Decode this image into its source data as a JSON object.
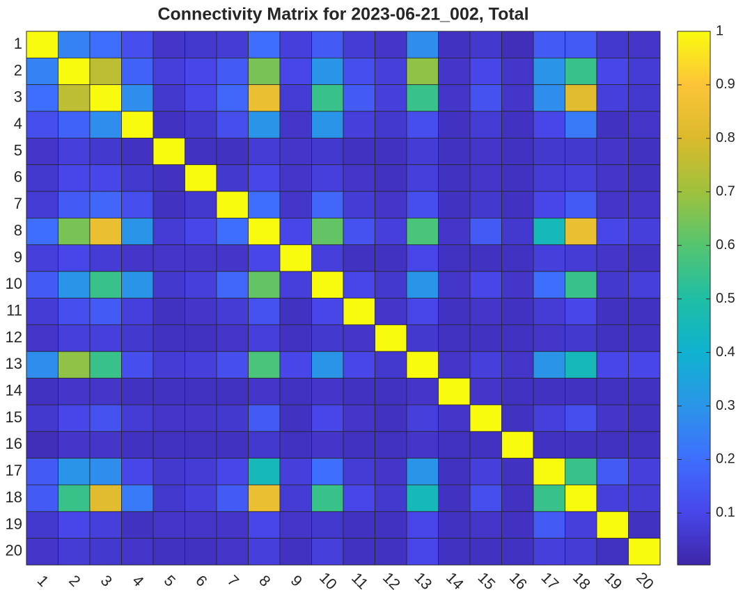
{
  "chart_data": {
    "type": "heatmap",
    "title": "Connectivity Matrix for 2023-06-21_002, Total",
    "x_categories": [
      "1",
      "2",
      "3",
      "4",
      "5",
      "6",
      "7",
      "8",
      "9",
      "10",
      "11",
      "12",
      "13",
      "14",
      "15",
      "16",
      "17",
      "18",
      "19",
      "20"
    ],
    "y_categories": [
      "1",
      "2",
      "3",
      "4",
      "5",
      "6",
      "7",
      "8",
      "9",
      "10",
      "11",
      "12",
      "13",
      "14",
      "15",
      "16",
      "17",
      "18",
      "19",
      "20"
    ],
    "values": [
      [
        1,
        0.25,
        0.2,
        0.12,
        0.05,
        0.06,
        0.07,
        0.2,
        0.08,
        0.15,
        0.07,
        0.05,
        0.28,
        0.04,
        0.06,
        0.03,
        0.15,
        0.15,
        0.06,
        0.05
      ],
      [
        0.25,
        1,
        0.75,
        0.17,
        0.08,
        0.1,
        0.15,
        0.65,
        0.1,
        0.3,
        0.12,
        0.08,
        0.68,
        0.05,
        0.1,
        0.05,
        0.3,
        0.55,
        0.1,
        0.07
      ],
      [
        0.2,
        0.75,
        1,
        0.28,
        0.06,
        0.1,
        0.18,
        0.85,
        0.07,
        0.55,
        0.15,
        0.08,
        0.55,
        0.05,
        0.13,
        0.05,
        0.28,
        0.82,
        0.08,
        0.06
      ],
      [
        0.12,
        0.17,
        0.28,
        1,
        0.04,
        0.06,
        0.12,
        0.3,
        0.05,
        0.3,
        0.08,
        0.06,
        0.12,
        0.04,
        0.07,
        0.04,
        0.1,
        0.23,
        0.04,
        0.05
      ],
      [
        0.05,
        0.08,
        0.06,
        0.04,
        1,
        0.04,
        0.04,
        0.07,
        0.05,
        0.06,
        0.04,
        0.04,
        0.07,
        0.04,
        0.05,
        0.04,
        0.06,
        0.06,
        0.05,
        0.04
      ],
      [
        0.06,
        0.1,
        0.1,
        0.06,
        0.04,
        1,
        0.06,
        0.1,
        0.05,
        0.08,
        0.05,
        0.04,
        0.08,
        0.04,
        0.05,
        0.04,
        0.07,
        0.08,
        0.05,
        0.04
      ],
      [
        0.07,
        0.15,
        0.18,
        0.12,
        0.04,
        0.06,
        1,
        0.2,
        0.05,
        0.18,
        0.07,
        0.05,
        0.12,
        0.04,
        0.06,
        0.04,
        0.1,
        0.15,
        0.05,
        0.05
      ],
      [
        0.2,
        0.65,
        0.85,
        0.3,
        0.07,
        0.1,
        0.2,
        1,
        0.1,
        0.62,
        0.13,
        0.08,
        0.58,
        0.05,
        0.15,
        0.06,
        0.45,
        0.85,
        0.1,
        0.08
      ],
      [
        0.08,
        0.1,
        0.07,
        0.05,
        0.05,
        0.05,
        0.05,
        0.1,
        1,
        0.08,
        0.04,
        0.04,
        0.1,
        0.04,
        0.04,
        0.04,
        0.08,
        0.07,
        0.05,
        0.04
      ],
      [
        0.15,
        0.3,
        0.55,
        0.3,
        0.06,
        0.08,
        0.18,
        0.62,
        0.08,
        1,
        0.1,
        0.06,
        0.3,
        0.05,
        0.1,
        0.05,
        0.2,
        0.55,
        0.06,
        0.08
      ],
      [
        0.07,
        0.12,
        0.15,
        0.08,
        0.04,
        0.05,
        0.07,
        0.13,
        0.04,
        0.1,
        1,
        0.05,
        0.1,
        0.04,
        0.05,
        0.04,
        0.07,
        0.1,
        0.04,
        0.04
      ],
      [
        0.05,
        0.08,
        0.08,
        0.06,
        0.04,
        0.04,
        0.05,
        0.08,
        0.04,
        0.06,
        0.05,
        1,
        0.06,
        0.04,
        0.04,
        0.04,
        0.05,
        0.06,
        0.04,
        0.04
      ],
      [
        0.28,
        0.68,
        0.55,
        0.12,
        0.07,
        0.08,
        0.12,
        0.58,
        0.1,
        0.3,
        0.1,
        0.06,
        1,
        0.05,
        0.08,
        0.05,
        0.3,
        0.45,
        0.1,
        0.1
      ],
      [
        0.04,
        0.05,
        0.05,
        0.04,
        0.04,
        0.04,
        0.04,
        0.05,
        0.04,
        0.05,
        0.04,
        0.04,
        0.05,
        1,
        0.05,
        0.04,
        0.04,
        0.04,
        0.04,
        0.04
      ],
      [
        0.06,
        0.1,
        0.13,
        0.07,
        0.05,
        0.05,
        0.06,
        0.15,
        0.04,
        0.1,
        0.05,
        0.04,
        0.08,
        0.05,
        1,
        0.04,
        0.08,
        0.12,
        0.05,
        0.04
      ],
      [
        0.03,
        0.05,
        0.05,
        0.04,
        0.04,
        0.04,
        0.04,
        0.06,
        0.04,
        0.05,
        0.04,
        0.04,
        0.05,
        0.04,
        0.04,
        1,
        0.04,
        0.04,
        0.04,
        0.04
      ],
      [
        0.15,
        0.3,
        0.28,
        0.1,
        0.06,
        0.07,
        0.1,
        0.45,
        0.08,
        0.2,
        0.07,
        0.05,
        0.3,
        0.04,
        0.08,
        0.04,
        1,
        0.55,
        0.15,
        0.08
      ],
      [
        0.15,
        0.55,
        0.82,
        0.23,
        0.06,
        0.08,
        0.15,
        0.85,
        0.07,
        0.55,
        0.1,
        0.06,
        0.45,
        0.04,
        0.12,
        0.04,
        0.55,
        1,
        0.08,
        0.07
      ],
      [
        0.06,
        0.1,
        0.08,
        0.04,
        0.05,
        0.05,
        0.05,
        0.1,
        0.05,
        0.06,
        0.04,
        0.04,
        0.1,
        0.04,
        0.05,
        0.04,
        0.15,
        0.08,
        1,
        0.04
      ],
      [
        0.05,
        0.07,
        0.06,
        0.05,
        0.04,
        0.04,
        0.05,
        0.08,
        0.04,
        0.08,
        0.04,
        0.04,
        0.1,
        0.04,
        0.04,
        0.04,
        0.08,
        0.07,
        0.04,
        1
      ]
    ],
    "clim": [
      0.003,
      1
    ],
    "colorbar_ticks": [
      0.1,
      0.2,
      0.3,
      0.4,
      0.5,
      0.6,
      0.7,
      0.8,
      0.9,
      1
    ],
    "colormap": [
      "#3e26a8",
      "#4847eb",
      "#3e6ffe",
      "#2a96e8",
      "#0fb2cf",
      "#1fbea4",
      "#55c56f",
      "#9fc13c",
      "#dbba2c",
      "#fcc438",
      "#f9fb0e"
    ]
  }
}
